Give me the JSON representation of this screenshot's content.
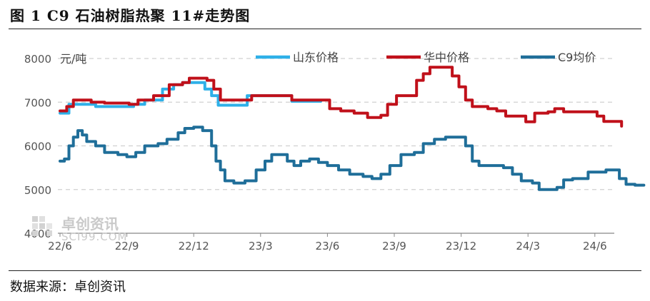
{
  "header": {
    "title": "图 1  C9 石油树脂热聚 11#走势图"
  },
  "footer": {
    "source": "数据来源：卓创资讯"
  },
  "watermark": {
    "brand": "卓创资讯",
    "site": "SCI99.COM"
  },
  "colors": {
    "shandong": "#2eb0e8",
    "huazhong": "#c0101a",
    "c9": "#1f6e99",
    "grid": "#d0d0d0",
    "axis": "#888888"
  },
  "chart_data": {
    "type": "line",
    "unit_label": "元/吨",
    "ylim": [
      4000,
      8000
    ],
    "yticks": [
      4000,
      5000,
      6000,
      7000,
      8000
    ],
    "xlim": [
      0,
      25.2
    ],
    "xticks": [
      {
        "x": 0,
        "label": "22/6"
      },
      {
        "x": 3,
        "label": "22/9"
      },
      {
        "x": 6,
        "label": "22/12"
      },
      {
        "x": 9,
        "label": "23/3"
      },
      {
        "x": 12,
        "label": "23/6"
      },
      {
        "x": 15,
        "label": "23/9"
      },
      {
        "x": 18,
        "label": "23/12"
      },
      {
        "x": 21,
        "label": "24/3"
      },
      {
        "x": 24,
        "label": "24/6"
      }
    ],
    "grid": "horizontal dashed",
    "legend_position": "top",
    "series": [
      {
        "name": "山东价格",
        "color": "#2eb0e8",
        "points": [
          [
            0,
            6750
          ],
          [
            0.4,
            6950
          ],
          [
            1.0,
            6950
          ],
          [
            1.6,
            6900
          ],
          [
            2.4,
            6900
          ],
          [
            3.3,
            6950
          ],
          [
            3.8,
            7050
          ],
          [
            4.6,
            7300
          ],
          [
            5.1,
            7400
          ],
          [
            5.5,
            7450
          ],
          [
            6.3,
            7450
          ],
          [
            6.5,
            7300
          ],
          [
            6.8,
            7150
          ],
          [
            7.1,
            6930
          ],
          [
            8.3,
            6930
          ],
          [
            8.4,
            7150
          ],
          [
            9.9,
            7150
          ],
          [
            10.4,
            7020
          ],
          [
            11.7,
            7020
          ]
        ]
      },
      {
        "name": "华中价格",
        "color": "#c0101a",
        "points": [
          [
            0,
            6800
          ],
          [
            0.3,
            6900
          ],
          [
            0.6,
            7050
          ],
          [
            1.4,
            7000
          ],
          [
            2.0,
            6980
          ],
          [
            3.1,
            6950
          ],
          [
            3.5,
            7050
          ],
          [
            4.2,
            7150
          ],
          [
            4.9,
            7400
          ],
          [
            5.5,
            7450
          ],
          [
            5.8,
            7550
          ],
          [
            6.6,
            7500
          ],
          [
            6.9,
            7300
          ],
          [
            7.2,
            7050
          ],
          [
            8.4,
            7050
          ],
          [
            8.6,
            7150
          ],
          [
            10.2,
            7150
          ],
          [
            10.4,
            7050
          ],
          [
            11.9,
            7050
          ],
          [
            12.1,
            6850
          ],
          [
            12.6,
            6800
          ],
          [
            13.2,
            6750
          ],
          [
            13.8,
            6650
          ],
          [
            14.4,
            6700
          ],
          [
            14.7,
            6950
          ],
          [
            15.1,
            7150
          ],
          [
            15.9,
            7150
          ],
          [
            16.0,
            7500
          ],
          [
            16.3,
            7650
          ],
          [
            16.6,
            7800
          ],
          [
            17.4,
            7800
          ],
          [
            17.6,
            7600
          ],
          [
            17.9,
            7350
          ],
          [
            18.2,
            7050
          ],
          [
            18.5,
            6900
          ],
          [
            19.2,
            6850
          ],
          [
            19.6,
            6800
          ],
          [
            20.0,
            6680
          ],
          [
            20.6,
            6680
          ],
          [
            20.9,
            6550
          ],
          [
            21.3,
            6750
          ],
          [
            21.9,
            6780
          ],
          [
            22.2,
            6850
          ],
          [
            22.6,
            6780
          ],
          [
            24.0,
            6780
          ],
          [
            24.1,
            6680
          ],
          [
            24.4,
            6560
          ],
          [
            24.9,
            6560
          ],
          [
            25.2,
            6450
          ]
        ]
      },
      {
        "name": "C9均价",
        "color": "#1f6e99",
        "points": [
          [
            0,
            5650
          ],
          [
            0.2,
            5700
          ],
          [
            0.4,
            6000
          ],
          [
            0.6,
            6200
          ],
          [
            0.8,
            6350
          ],
          [
            1.0,
            6250
          ],
          [
            1.2,
            6100
          ],
          [
            1.6,
            6000
          ],
          [
            2.0,
            5850
          ],
          [
            2.6,
            5800
          ],
          [
            3.0,
            5750
          ],
          [
            3.4,
            5850
          ],
          [
            3.8,
            6000
          ],
          [
            4.4,
            6050
          ],
          [
            4.8,
            6150
          ],
          [
            5.3,
            6300
          ],
          [
            5.6,
            6400
          ],
          [
            6.0,
            6430
          ],
          [
            6.4,
            6350
          ],
          [
            6.8,
            6000
          ],
          [
            7.0,
            5650
          ],
          [
            7.2,
            5450
          ],
          [
            7.4,
            5200
          ],
          [
            7.8,
            5150
          ],
          [
            8.3,
            5200
          ],
          [
            8.8,
            5450
          ],
          [
            9.2,
            5650
          ],
          [
            9.5,
            5800
          ],
          [
            9.9,
            5800
          ],
          [
            10.2,
            5650
          ],
          [
            10.5,
            5550
          ],
          [
            10.8,
            5650
          ],
          [
            11.2,
            5700
          ],
          [
            11.6,
            5620
          ],
          [
            12.0,
            5550
          ],
          [
            12.5,
            5450
          ],
          [
            13.0,
            5350
          ],
          [
            13.6,
            5300
          ],
          [
            14.0,
            5250
          ],
          [
            14.4,
            5350
          ],
          [
            14.8,
            5550
          ],
          [
            15.3,
            5800
          ],
          [
            15.9,
            5850
          ],
          [
            16.3,
            6050
          ],
          [
            16.8,
            6150
          ],
          [
            17.3,
            6200
          ],
          [
            17.8,
            6200
          ],
          [
            18.2,
            6000
          ],
          [
            18.5,
            5650
          ],
          [
            18.8,
            5550
          ],
          [
            19.4,
            5550
          ],
          [
            19.9,
            5500
          ],
          [
            20.3,
            5350
          ],
          [
            20.7,
            5200
          ],
          [
            21.2,
            5150
          ],
          [
            21.5,
            5000
          ],
          [
            21.9,
            5000
          ],
          [
            22.3,
            5050
          ],
          [
            22.6,
            5220
          ],
          [
            23.0,
            5250
          ],
          [
            23.4,
            5250
          ],
          [
            23.7,
            5400
          ],
          [
            24.0,
            5400
          ],
          [
            24.5,
            5450
          ],
          [
            24.9,
            5450
          ],
          [
            25.1,
            5250
          ],
          [
            25.4,
            5120
          ],
          [
            25.8,
            5100
          ],
          [
            26.2,
            5100
          ]
        ]
      }
    ]
  }
}
